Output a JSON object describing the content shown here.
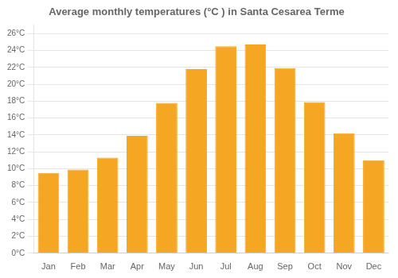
{
  "chart_data": {
    "type": "bar",
    "title": "Average monthly temperatures (°C ) in Santa Cesarea Terme",
    "categories": [
      "Jan",
      "Feb",
      "Mar",
      "Apr",
      "May",
      "Jun",
      "Jul",
      "Aug",
      "Sep",
      "Oct",
      "Nov",
      "Dec"
    ],
    "values": [
      9.5,
      9.9,
      11.3,
      13.9,
      17.8,
      21.8,
      24.5,
      24.7,
      21.9,
      17.9,
      14.2,
      11.0
    ],
    "color": "#F5A623",
    "ylim": [
      0,
      27
    ],
    "yticks": [
      {
        "value": 0,
        "label": "0°C"
      },
      {
        "value": 2,
        "label": "2°C"
      },
      {
        "value": 4,
        "label": "4°C"
      },
      {
        "value": 6,
        "label": "6°C"
      },
      {
        "value": 8,
        "label": "8°C"
      },
      {
        "value": 10,
        "label": "10°C"
      },
      {
        "value": 12,
        "label": "12°C"
      },
      {
        "value": 14,
        "label": "14°C"
      },
      {
        "value": 16,
        "label": "16°C"
      },
      {
        "value": 18,
        "label": "18°C"
      },
      {
        "value": 20,
        "label": "20°C"
      },
      {
        "value": 22,
        "label": "22°C"
      },
      {
        "value": 24,
        "label": "24°C"
      },
      {
        "value": 26,
        "label": "26°C"
      }
    ],
    "grid": true
  }
}
